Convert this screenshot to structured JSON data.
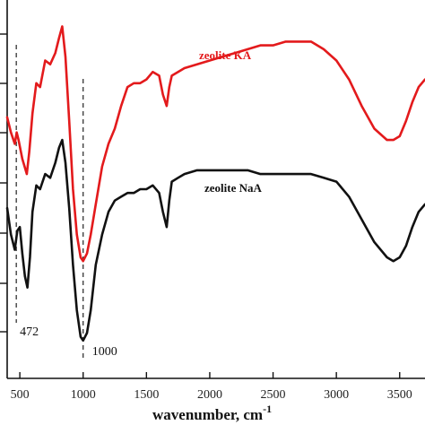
{
  "chart_data": {
    "type": "line",
    "xlabel": "wavenumber, cm",
    "xlabel_superscript": "-1",
    "xlim": [
      400,
      3700
    ],
    "ylim": [
      0,
      100
    ],
    "x_ticks": [
      500,
      1000,
      1500,
      2000,
      2500,
      3000,
      3500
    ],
    "x_tick_labels": [
      "500",
      "1000",
      "1500",
      "2000",
      "2500",
      "3000",
      "3500"
    ],
    "grid": false,
    "annotations": [
      {
        "text": "472",
        "x": 472
      },
      {
        "text": "1000",
        "x": 1000
      }
    ],
    "reference_lines": [
      472,
      1000
    ],
    "series": [
      {
        "name": "zeolite KA",
        "color": "#e31a1c",
        "x": [
          400,
          430,
          460,
          475,
          490,
          520,
          555,
          575,
          600,
          630,
          660,
          700,
          740,
          780,
          810,
          835,
          860,
          890,
          920,
          950,
          980,
          1000,
          1030,
          1060,
          1100,
          1150,
          1200,
          1250,
          1300,
          1350,
          1400,
          1450,
          1500,
          1550,
          1600,
          1630,
          1660,
          1680,
          1700,
          1750,
          1800,
          1900,
          2000,
          2100,
          2200,
          2300,
          2400,
          2500,
          2600,
          2700,
          2800,
          2900,
          3000,
          3100,
          3200,
          3300,
          3400,
          3450,
          3500,
          3550,
          3600,
          3650,
          3700
        ],
        "y": [
          69,
          65,
          62,
          65,
          63,
          58,
          54,
          60,
          70,
          78,
          77,
          84,
          83,
          86,
          90,
          93,
          85,
          68,
          50,
          38,
          32,
          31,
          33,
          38,
          46,
          56,
          62,
          66,
          72,
          77,
          78,
          78,
          79,
          81,
          80,
          75,
          72,
          77,
          80,
          81,
          82,
          83,
          84,
          85,
          86,
          87,
          88,
          88,
          89,
          89,
          89,
          87,
          84,
          79,
          72,
          66,
          63,
          63,
          64,
          68,
          73,
          77,
          79
        ]
      },
      {
        "name": "zeolite NaA",
        "color": "#111111",
        "x": [
          400,
          430,
          460,
          480,
          500,
          520,
          540,
          560,
          580,
          600,
          630,
          660,
          700,
          740,
          780,
          810,
          835,
          860,
          890,
          920,
          950,
          980,
          1000,
          1030,
          1060,
          1100,
          1150,
          1200,
          1250,
          1300,
          1350,
          1400,
          1450,
          1500,
          1550,
          1600,
          1630,
          1660,
          1680,
          1700,
          1750,
          1800,
          1900,
          2000,
          2100,
          2200,
          2300,
          2400,
          2500,
          2600,
          2700,
          2800,
          2900,
          3000,
          3100,
          3200,
          3300,
          3400,
          3450,
          3500,
          3550,
          3600,
          3650,
          3700
        ],
        "y": [
          45,
          38,
          34,
          39,
          40,
          33,
          27,
          24,
          32,
          44,
          51,
          50,
          54,
          53,
          57,
          61,
          63,
          57,
          45,
          30,
          18,
          11,
          10,
          12,
          18,
          30,
          38,
          44,
          47,
          48,
          49,
          49,
          50,
          50,
          51,
          49,
          44,
          40,
          47,
          52,
          53,
          54,
          55,
          55,
          55,
          55,
          55,
          54,
          54,
          54,
          54,
          54,
          53,
          52,
          48,
          42,
          36,
          32,
          31,
          32,
          35,
          40,
          44,
          46
        ]
      }
    ]
  }
}
